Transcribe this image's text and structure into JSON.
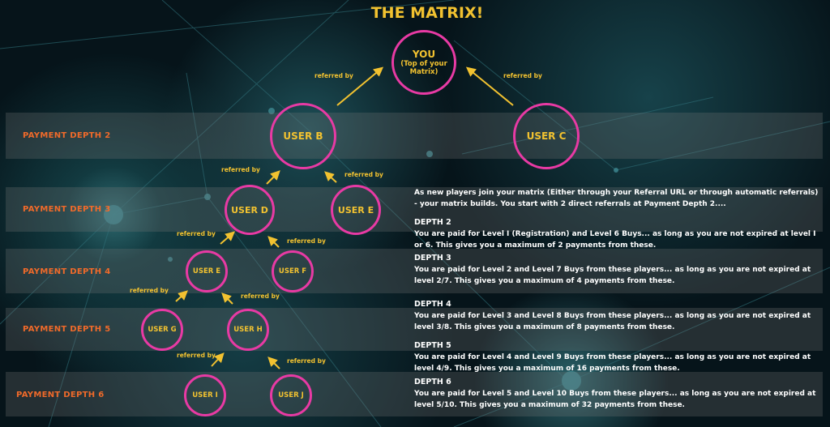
{
  "title": "THE MATRIX!",
  "colors": {
    "accent": "#f2c230",
    "node_ring": "#e83aa4",
    "depth_label": "#f06a2a"
  },
  "depths": [
    "PAYMENT DEPTH 2",
    "PAYMENT DEPTH 3",
    "PAYMENT DEPTH 4",
    "PAYMENT DEPTH 5",
    "PAYMENT DEPTH 6"
  ],
  "nodes": {
    "you": "YOU",
    "you_sub1": "(Top of your",
    "you_sub2": "Matrix)",
    "b": "USER B",
    "c": "USER C",
    "d": "USER D",
    "e3": "USER E",
    "e4": "USER E",
    "f": "USER F",
    "g": "USER G",
    "h": "USER H",
    "i": "USER I",
    "j": "USER J"
  },
  "referred_by": "referred by",
  "info": {
    "intro": "As new players join your matrix (Either through your Referral URL or through automatic referrals) - your matrix builds.  You start with 2 direct referrals at Payment Depth 2....",
    "sections": [
      {
        "heading": "DEPTH 2",
        "text": "You are paid for Level I (Registration) and Level 6 Buys... as long as you are not expired at level I or 6. This gives you a maximum of 2 payments from these."
      },
      {
        "heading": "DEPTH 3",
        "text": "You are paid for Level 2 and Level 7 Buys from these players... as long as you are not expired at level 2/7. This gives you a maximum of 4 payments from these."
      },
      {
        "heading": "DEPTH 4",
        "text": "You are paid for Level 3 and Level 8 Buys from these players... as long as you are not expired at level 3/8. This gives you a maximum of 8 payments from these."
      },
      {
        "heading": "DEPTH 5",
        "text": "You are paid for Level 4 and Level 9 Buys from these players... as long as you are not expired at level 4/9. This gives you a maximum of 16 payments from these."
      },
      {
        "heading": "DEPTH 6",
        "text": "You are paid for Level 5 and Level 10 Buys from these players... as long as you are not expired at level 5/10. This gives you a maximum of 32 payments from these."
      }
    ]
  }
}
